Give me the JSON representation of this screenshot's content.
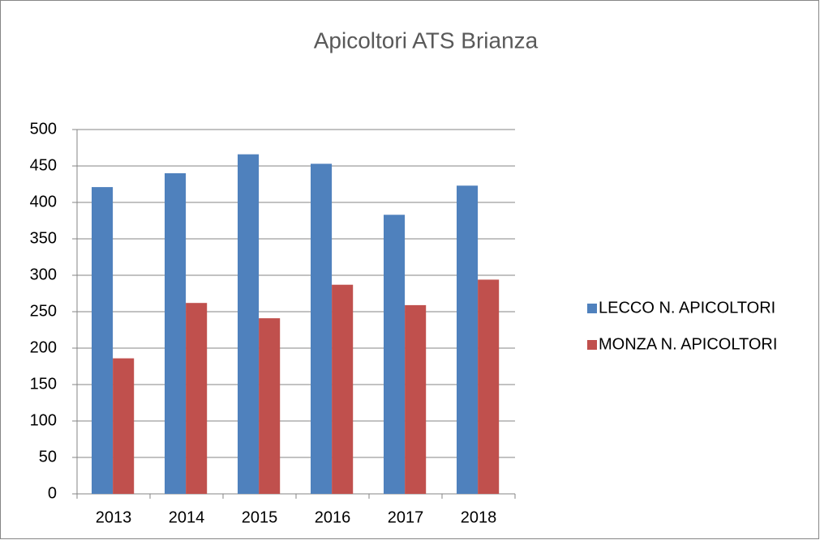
{
  "chart_data": {
    "type": "bar",
    "title": "Apicoltori ATS Brianza",
    "categories": [
      "2013",
      "2014",
      "2015",
      "2016",
      "2017",
      "2018"
    ],
    "series": [
      {
        "name": "LECCO N. APICOLTORI",
        "color": "#4f81bd",
        "values": [
          421,
          440,
          466,
          453,
          383,
          423
        ]
      },
      {
        "name": "MONZA N. APICOLTORI",
        "color": "#c0504d",
        "values": [
          186,
          262,
          241,
          287,
          259,
          294
        ]
      }
    ],
    "ylim": [
      0,
      500
    ],
    "yticks": [
      0,
      50,
      100,
      150,
      200,
      250,
      300,
      350,
      400,
      450,
      500
    ],
    "grid": true,
    "legend": "right"
  }
}
